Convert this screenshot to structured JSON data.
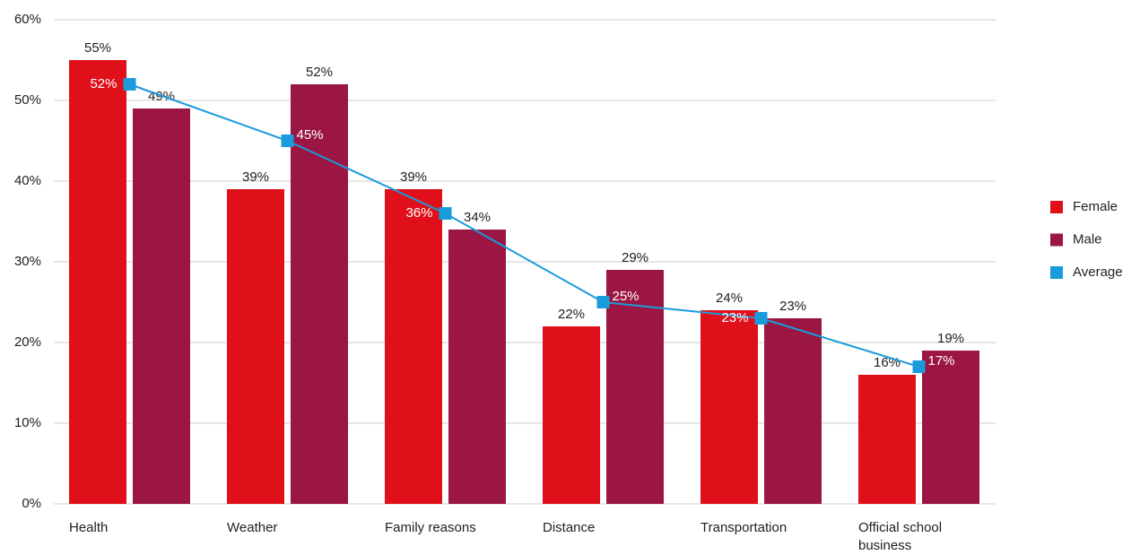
{
  "chart_data": {
    "type": "bar",
    "categories": [
      "Health",
      "Weather",
      "Family reasons",
      "Distance",
      "Transportation",
      "Official school business"
    ],
    "series": [
      {
        "name": "Female",
        "color": "#e0101a",
        "values": [
          55,
          39,
          39,
          22,
          24,
          16
        ],
        "value_labels": [
          "55%",
          "39%",
          "39%",
          "22%",
          "24%",
          "16%"
        ]
      },
      {
        "name": "Male",
        "color": "#9b1642",
        "values": [
          49,
          52,
          34,
          29,
          23,
          19
        ],
        "value_labels": [
          "49%",
          "52%",
          "34%",
          "29%",
          "23%",
          "19%"
        ]
      },
      {
        "name": "Average",
        "type": "line",
        "color": "#1a9bdc",
        "values": [
          52,
          45,
          36,
          25,
          23,
          17
        ],
        "value_labels": [
          "52%",
          "45%",
          "36%",
          "25%",
          "23%",
          "17%"
        ]
      }
    ],
    "ylim": [
      0,
      60
    ],
    "yticks": [
      {
        "value": 0,
        "label": "0%"
      },
      {
        "value": 10,
        "label": "10%"
      },
      {
        "value": 20,
        "label": "20%"
      },
      {
        "value": 30,
        "label": "30%"
      },
      {
        "value": 40,
        "label": "40%"
      },
      {
        "value": 50,
        "label": "50%"
      },
      {
        "value": 60,
        "label": "60%"
      }
    ],
    "grid": true,
    "legend": "right"
  }
}
